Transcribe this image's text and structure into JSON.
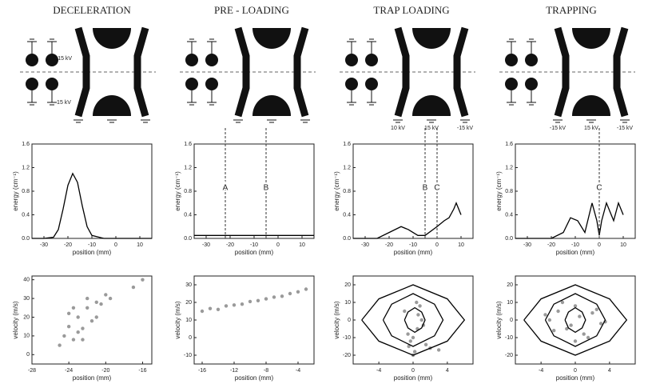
{
  "diagrams": [
    {
      "title": "DECELERATION",
      "voltages": [
        "-15 kV",
        "15 kV"
      ]
    },
    {
      "title": "PRE - LOADING",
      "voltages": []
    },
    {
      "title": "TRAP LOADING",
      "voltages": [
        "10 kV",
        "15 kV",
        "-15 kV"
      ]
    },
    {
      "title": "TRAPPING",
      "voltages": [
        "-15 kV",
        "15 kV",
        "-15 kV"
      ]
    }
  ],
  "chart_data": [
    {
      "type": "line",
      "xlabel": "position (mm)",
      "ylabel": "energy (cm⁻¹)",
      "x": [
        -35,
        -30,
        -26,
        -24,
        -22,
        -20,
        -18,
        -16,
        -14,
        -12,
        -10,
        -5,
        0,
        15
      ],
      "values": [
        0,
        0,
        0.02,
        0.15,
        0.5,
        0.9,
        1.1,
        0.95,
        0.55,
        0.2,
        0.05,
        0,
        0,
        0
      ],
      "xlim": [
        -35,
        15
      ],
      "xticks": [
        -30,
        -20,
        -10,
        0,
        10
      ],
      "ylim": [
        0,
        1.6
      ],
      "yticks": [
        {
          "value": 0,
          "label": "0.0"
        },
        0.4,
        0.8,
        1.2,
        1.6
      ],
      "annotations": []
    },
    {
      "type": "line",
      "xlabel": "position (mm)",
      "ylabel": "energy (cm⁻¹)",
      "x": [
        -35,
        15
      ],
      "values": [
        0.05,
        0.05
      ],
      "xlim": [
        -35,
        15
      ],
      "xticks": [
        -30,
        -20,
        -10,
        0,
        10
      ],
      "ylim": [
        0,
        1.6
      ],
      "yticks": [
        {
          "value": 0,
          "label": "0.0"
        },
        0.4,
        0.8,
        1.2,
        1.6
      ],
      "annotations": [
        {
          "text": "A",
          "x": -22
        },
        {
          "text": "B",
          "x": -5
        }
      ]
    },
    {
      "type": "line",
      "xlabel": "position (mm)",
      "ylabel": "energy (cm⁻¹)",
      "x": [
        -35,
        -25,
        -20,
        -15,
        -12,
        -8,
        -5,
        0,
        3,
        5,
        7,
        8,
        10
      ],
      "values": [
        0,
        0,
        0.1,
        0.2,
        0.15,
        0.05,
        0.05,
        0.2,
        0.3,
        0.35,
        0.5,
        0.6,
        0.4
      ],
      "xlim": [
        -35,
        15
      ],
      "xticks": [
        -30,
        -20,
        -10,
        0,
        10
      ],
      "ylim": [
        0,
        1.6
      ],
      "yticks": [
        {
          "value": 0,
          "label": "0.0"
        },
        0.4,
        0.8,
        1.2,
        1.6
      ],
      "annotations": [
        {
          "text": "B",
          "x": -5
        },
        {
          "text": "C",
          "x": 0
        }
      ]
    },
    {
      "type": "line",
      "xlabel": "position (mm)",
      "ylabel": "energy (cm⁻¹)",
      "x": [
        -35,
        -20,
        -15,
        -12,
        -9,
        -6,
        -3,
        -1,
        0,
        1,
        3,
        5,
        6,
        8,
        10
      ],
      "values": [
        0,
        0,
        0.1,
        0.35,
        0.3,
        0.1,
        0.6,
        0.3,
        0.05,
        0.3,
        0.6,
        0.4,
        0.3,
        0.6,
        0.4
      ],
      "xlim": [
        -35,
        15
      ],
      "xticks": [
        -30,
        -20,
        -10,
        0,
        10
      ],
      "ylim": [
        0,
        1.6
      ],
      "yticks": [
        {
          "value": 0,
          "label": "0.0"
        },
        0.4,
        0.8,
        1.2,
        1.6
      ],
      "annotations": [
        {
          "text": "C",
          "x": 0
        }
      ]
    },
    {
      "type": "scatter",
      "xlabel": "position (mm)",
      "ylabel": "velocity (m/s)",
      "xlim": [
        -28,
        -15
      ],
      "xticks": [
        -28,
        -24,
        -20,
        -16
      ],
      "ylim": [
        -5,
        42
      ],
      "yticks": [
        0,
        10,
        20,
        30,
        40
      ],
      "series": [
        {
          "type": "scatter",
          "color": "#9a9a9a",
          "x": [
            -25,
            -24.5,
            -24,
            -23.5,
            -23,
            -22.5,
            -22,
            -21.5,
            -21,
            -24,
            -23,
            -22,
            -20.5,
            -20,
            -19.5,
            -22.5,
            -23.5,
            -21,
            -17,
            -16
          ],
          "values": [
            5,
            10,
            15,
            8,
            20,
            14,
            25,
            18,
            28,
            22,
            12,
            30,
            27,
            32,
            30,
            8,
            25,
            20,
            36,
            40
          ]
        }
      ]
    },
    {
      "type": "scatter",
      "xlabel": "position (mm)",
      "ylabel": "velocity (m/s)",
      "xlim": [
        -17,
        -2
      ],
      "xticks": [
        -16,
        -12,
        -8,
        -4
      ],
      "ylim": [
        -15,
        35
      ],
      "yticks": [
        -10,
        0,
        10,
        20,
        30
      ],
      "series": [
        {
          "type": "scatter",
          "color": "#9a9a9a",
          "x": [
            -16,
            -15,
            -14,
            -13,
            -12,
            -11,
            -10,
            -9,
            -8,
            -7,
            -6,
            -5,
            -4,
            -3
          ],
          "values": [
            15,
            16.5,
            16,
            18,
            18.5,
            19,
            20.5,
            21,
            22,
            23,
            23.5,
            25,
            26,
            27.5
          ]
        }
      ]
    },
    {
      "type": "scatter",
      "xlabel": "position (mm)",
      "ylabel": "velocity (m/s)",
      "xlim": [
        -7,
        7
      ],
      "xticks": [
        -4,
        0,
        4
      ],
      "ylim": [
        -25,
        25
      ],
      "yticks": [
        -20,
        -10,
        0,
        10,
        20
      ],
      "series": [
        {
          "type": "scatter",
          "color": "#9a9a9a",
          "x": [
            -0.5,
            0,
            0.5,
            1,
            -1,
            0.8,
            0.2,
            -0.3,
            1.2,
            0.6,
            0,
            0.4,
            -0.6,
            1.5,
            2,
            3
          ],
          "values": [
            -15,
            -10,
            -5,
            0,
            5,
            8,
            -18,
            -12,
            -3,
            3,
            -20,
            10,
            -8,
            -14,
            -16,
            -17
          ]
        },
        {
          "type": "line",
          "color": "#000",
          "x": [
            -6,
            -4,
            0,
            4,
            6,
            4,
            0,
            -4,
            -6
          ],
          "values": [
            0,
            12,
            20,
            12,
            0,
            -12,
            -20,
            -12,
            0
          ]
        },
        {
          "type": "line",
          "color": "#000",
          "x": [
            -3.5,
            -2.5,
            0,
            2.5,
            3.5,
            2.5,
            0,
            -2.5,
            -3.5
          ],
          "values": [
            0,
            9,
            15,
            9,
            0,
            -9,
            -15,
            -9,
            0
          ]
        },
        {
          "type": "line",
          "color": "#000",
          "x": [
            -1,
            -0.6,
            0.2,
            1,
            1.4,
            1,
            0.2,
            -0.6,
            -1
          ],
          "values": [
            0,
            4.5,
            7,
            4.5,
            0,
            -4.5,
            -7,
            -4.5,
            0
          ]
        }
      ]
    },
    {
      "type": "scatter",
      "xlabel": "position (mm)",
      "ylabel": "velocity (m/s)",
      "xlim": [
        -7,
        7
      ],
      "xticks": [
        -4,
        0,
        4
      ],
      "ylim": [
        -25,
        25
      ],
      "yticks": [
        -20,
        -10,
        0,
        10,
        20
      ],
      "series": [
        {
          "type": "scatter",
          "color": "#9a9a9a",
          "x": [
            -3,
            -2,
            -1,
            0,
            1,
            2,
            3,
            -2.5,
            2.5,
            -1.5,
            1.5,
            0.5,
            -0.5,
            0,
            -3.5,
            3.5
          ],
          "values": [
            0,
            5,
            -5,
            8,
            -8,
            4,
            -2,
            -6,
            6,
            10,
            -10,
            2,
            -3,
            -12,
            3,
            -1
          ]
        },
        {
          "type": "line",
          "color": "#000",
          "x": [
            -6,
            -4,
            0,
            4,
            6,
            4,
            0,
            -4,
            -6
          ],
          "values": [
            0,
            12,
            20,
            12,
            0,
            -12,
            -20,
            -12,
            0
          ]
        },
        {
          "type": "line",
          "color": "#000",
          "x": [
            -3.5,
            -2.5,
            0,
            2.5,
            3.5,
            2.5,
            0,
            -2.5,
            -3.5
          ],
          "values": [
            0,
            9,
            15,
            9,
            0,
            -9,
            -15,
            -9,
            0
          ]
        },
        {
          "type": "line",
          "color": "#000",
          "x": [
            -1.2,
            -0.8,
            0,
            0.8,
            1.2,
            0.8,
            0,
            -0.8,
            -1.2
          ],
          "values": [
            0,
            4.5,
            7,
            4.5,
            0,
            -4.5,
            -7,
            -4.5,
            0
          ]
        }
      ]
    }
  ]
}
